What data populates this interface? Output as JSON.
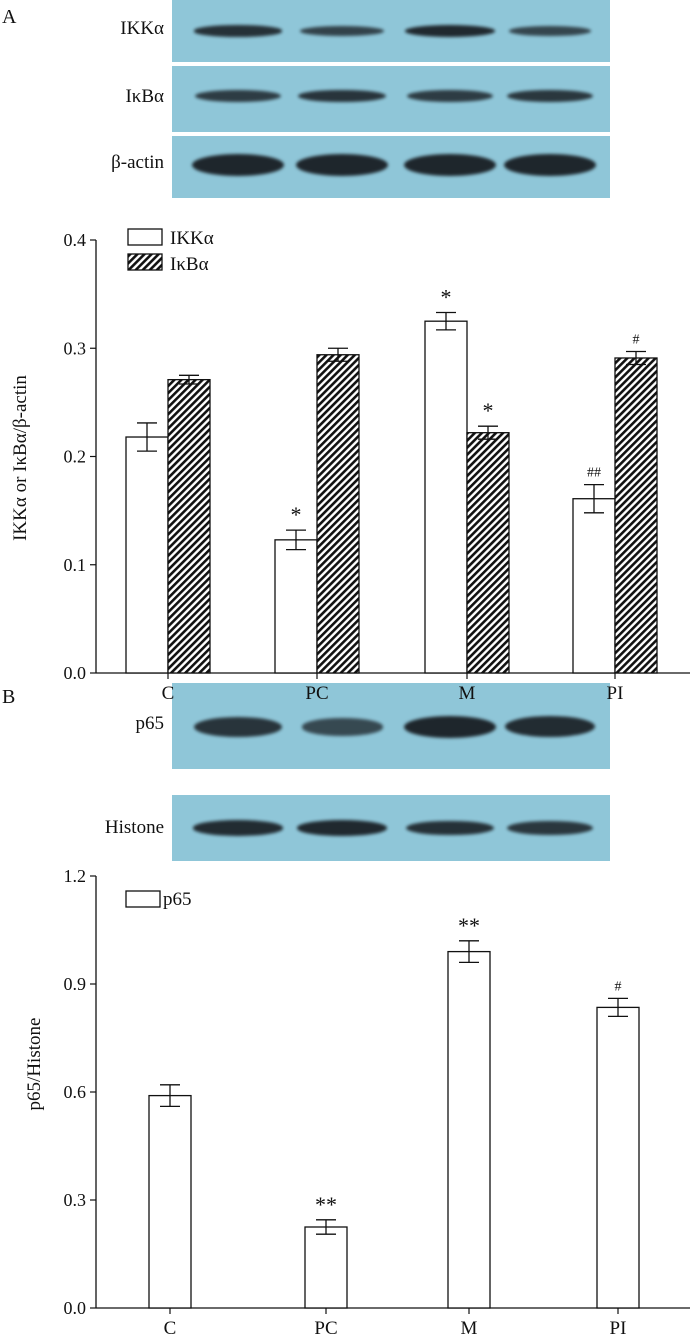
{
  "panels": {
    "a": {
      "letter": "A"
    },
    "b": {
      "letter": "B"
    }
  },
  "blot_a": {
    "rows": [
      {
        "label": "IKKα",
        "intensity": [
          0.85,
          0.6,
          0.95,
          0.55
        ]
      },
      {
        "label": "IκBα",
        "intensity": [
          0.7,
          0.8,
          0.7,
          0.75
        ]
      },
      {
        "label": "β-actin",
        "intensity": [
          1.0,
          1.0,
          1.0,
          1.0
        ]
      }
    ]
  },
  "blot_b": {
    "rows": [
      {
        "label": "p65",
        "intensity": [
          0.8,
          0.5,
          1.0,
          0.9
        ]
      },
      {
        "label": "Histone",
        "intensity": [
          0.9,
          0.95,
          0.85,
          0.75
        ]
      }
    ]
  },
  "colors": {
    "blot_bg": "#8fc6d8",
    "band": "#1e262c",
    "bar_edge": "#111111",
    "bar_fill": "#ffffff"
  },
  "chart_data": [
    {
      "type": "bar",
      "categories": [
        "C",
        "PC",
        "M",
        "PI"
      ],
      "ylabel": "IKKα or IκBα/β-actin",
      "xlabel": "",
      "ylim": [
        0,
        0.4
      ],
      "yticks": [
        "0.0",
        "0.1",
        "0.2",
        "0.3",
        "0.4"
      ],
      "legend_placement": "top-left",
      "series": [
        {
          "name": "IKKα",
          "pattern": "open",
          "values": [
            0.218,
            0.123,
            0.325,
            0.161
          ],
          "errors": [
            0.013,
            0.009,
            0.008,
            0.013
          ],
          "annotations": [
            "",
            "*",
            "*",
            "##"
          ]
        },
        {
          "name": "IκBα",
          "pattern": "hatched",
          "values": [
            0.271,
            0.294,
            0.222,
            0.291
          ],
          "errors": [
            0.004,
            0.006,
            0.006,
            0.006
          ],
          "annotations": [
            "",
            "",
            "*",
            "#"
          ]
        }
      ]
    },
    {
      "type": "bar",
      "categories": [
        "C",
        "PC",
        "M",
        "PI"
      ],
      "ylabel": "p65/Histone",
      "xlabel": "",
      "ylim": [
        0,
        1.2
      ],
      "yticks": [
        "0.0",
        "0.3",
        "0.6",
        "0.9",
        "1.2"
      ],
      "legend_placement": "top-left",
      "series": [
        {
          "name": "p65",
          "pattern": "open",
          "values": [
            0.59,
            0.225,
            0.99,
            0.835
          ],
          "errors": [
            0.03,
            0.02,
            0.03,
            0.025
          ],
          "annotations": [
            "",
            "**",
            "**",
            "#"
          ]
        }
      ]
    }
  ]
}
